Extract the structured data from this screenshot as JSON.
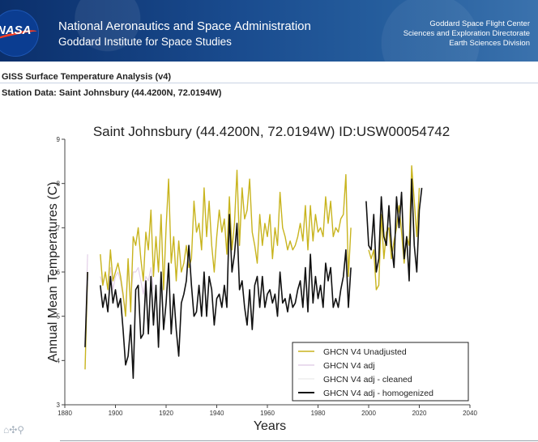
{
  "header": {
    "agency_name": "National Aeronautics and Space Administration",
    "institute": "Goddard Institute for Space Studies",
    "center_lines": [
      "Goddard Space Flight Center",
      "Sciences and Exploration Directorate",
      "Earth Sciences Division"
    ],
    "logo_text": "NASA"
  },
  "page": {
    "analysis_title": "GISS Surface Temperature Analysis (v4)",
    "station_label": "Station Data: Saint Johnsbury (44.4200N, 72.0194W)"
  },
  "toolbar": {
    "icons": "⌂✣⚲"
  },
  "chart_data": {
    "type": "line",
    "title": "Saint Johnsbury (44.4200N, 72.0194W) ID:USW00054742",
    "xlabel": "Years",
    "ylabel": "Annual Mean Temperatures (C)",
    "xlim": [
      1880,
      2040
    ],
    "ylim": [
      3,
      9
    ],
    "xticks": [
      1880,
      1900,
      1920,
      1940,
      1960,
      1980,
      2000,
      2020,
      2040
    ],
    "yticks": [
      3,
      4,
      5,
      6,
      7,
      8,
      9
    ],
    "legend_position": "bottom-right",
    "series": [
      {
        "name": "GHCN V4 Unadjusted",
        "color": "#c8b41e",
        "segments": [
          {
            "x": [
              1888,
              1889
            ],
            "y": [
              3.8,
              6.0
            ]
          },
          {
            "x": [
              1894,
              1895,
              1896,
              1897,
              1898,
              1899,
              1900,
              1901,
              1902,
              1903,
              1904,
              1905,
              1906,
              1907,
              1908,
              1909,
              1910,
              1911,
              1912,
              1913,
              1914,
              1915,
              1916,
              1917,
              1918,
              1919,
              1920,
              1921,
              1922,
              1923,
              1924,
              1925,
              1926,
              1927,
              1928,
              1929,
              1930,
              1931,
              1932,
              1933,
              1934,
              1935,
              1936,
              1937,
              1938,
              1939,
              1940,
              1941,
              1942,
              1943,
              1944,
              1945,
              1946,
              1947,
              1948,
              1949,
              1950,
              1951,
              1952,
              1953,
              1954,
              1955,
              1956,
              1957,
              1958,
              1959,
              1960,
              1961,
              1962,
              1963,
              1964,
              1965,
              1966,
              1967,
              1968,
              1969,
              1970,
              1971,
              1972,
              1973,
              1974,
              1975,
              1976,
              1977,
              1978,
              1979,
              1980,
              1981,
              1982,
              1983,
              1984,
              1985,
              1986,
              1987,
              1988,
              1989,
              1990,
              1991,
              1992,
              1993
            ],
            "y": [
              6.4,
              5.7,
              6.0,
              5.6,
              6.5,
              5.8,
              6.0,
              6.2,
              5.9,
              5.5,
              5.0,
              6.3,
              5.1,
              6.8,
              6.6,
              7.0,
              6.3,
              5.8,
              6.9,
              6.5,
              7.4,
              5.9,
              6.8,
              6.0,
              7.3,
              5.6,
              7.0,
              8.1,
              6.2,
              6.8,
              5.8,
              6.7,
              6.0,
              6.2,
              6.6,
              6.1,
              6.3,
              7.6,
              6.9,
              7.1,
              6.5,
              7.9,
              6.8,
              7.6,
              6.6,
              6.0,
              6.8,
              7.4,
              6.9,
              7.2,
              6.4,
              7.7,
              6.5,
              7.1,
              8.3,
              6.6,
              7.9,
              7.2,
              7.4,
              8.1,
              6.9,
              6.6,
              6.2,
              7.3,
              6.6,
              7.1,
              6.8,
              7.3,
              6.3,
              7.0,
              6.6,
              7.8,
              7.0,
              6.8,
              6.5,
              6.7,
              6.5,
              6.6,
              6.8,
              7.1,
              6.7,
              7.5,
              6.5,
              7.5,
              6.7,
              7.3,
              6.9,
              7.0,
              6.8,
              7.7,
              7.1,
              7.6,
              6.8,
              7.0,
              6.9,
              7.2,
              7.3,
              8.2,
              5.9,
              7.0
            ]
          },
          {
            "x": [
              2000,
              2001,
              2002,
              2003,
              2004,
              2005,
              2006,
              2007,
              2008,
              2009,
              2010,
              2011,
              2012,
              2013,
              2014,
              2015,
              2016,
              2017,
              2018,
              2019,
              2020
            ],
            "y": [
              6.5,
              6.3,
              6.5,
              5.6,
              5.7,
              7.3,
              6.3,
              6.9,
              7.0,
              6.3,
              6.7,
              7.0,
              7.5,
              6.9,
              6.2,
              6.8,
              6.6,
              8.4,
              7.6,
              6.8,
              7.9
            ]
          }
        ]
      },
      {
        "name": "GHCN V4 adj",
        "color": "#e3d0e8",
        "segments": [
          {
            "x": [
              1888,
              1889
            ],
            "y": [
              4.4,
              6.4
            ]
          },
          {
            "x": [
              1894,
              1895,
              1896,
              1897,
              1898,
              1899,
              1900,
              1901,
              1902,
              1903,
              1904,
              1905,
              1906,
              1907,
              1908,
              1909,
              1910,
              1911,
              1912,
              1913,
              1914,
              1915
            ],
            "y": [
              5.9,
              5.7,
              6.0,
              5.6,
              6.1,
              5.6,
              5.9,
              6.0,
              5.8,
              5.4,
              5.2,
              6.1,
              5.4,
              6.0,
              6.0,
              6.1,
              5.8,
              5.5,
              5.9,
              5.8,
              6.1,
              5.6
            ]
          }
        ]
      },
      {
        "name": "GHCN V4 adj - cleaned",
        "color": "#eeeeee",
        "segments": []
      },
      {
        "name": "GHCN V4 adj - homogenized",
        "color": "#111111",
        "segments": [
          {
            "x": [
              1888,
              1889
            ],
            "y": [
              4.3,
              6.0
            ]
          },
          {
            "x": [
              1894,
              1895,
              1896,
              1897,
              1898,
              1899,
              1900,
              1901,
              1902,
              1903,
              1904,
              1905,
              1906,
              1907,
              1908,
              1909,
              1910,
              1911,
              1912,
              1913,
              1914,
              1915,
              1916,
              1917,
              1918,
              1919,
              1920,
              1921,
              1922,
              1923,
              1924,
              1925,
              1926,
              1927,
              1928,
              1929,
              1930,
              1931,
              1932,
              1933,
              1934,
              1935,
              1936,
              1937,
              1938,
              1939,
              1940,
              1941,
              1942,
              1943,
              1944,
              1945,
              1946,
              1947,
              1948,
              1949,
              1950,
              1951,
              1952,
              1953,
              1954,
              1955,
              1956,
              1957,
              1958,
              1959,
              1960,
              1961,
              1962,
              1963,
              1964,
              1965,
              1966,
              1967,
              1968,
              1969,
              1970,
              1971,
              1972,
              1973,
              1974,
              1975,
              1976,
              1977,
              1978,
              1979,
              1980,
              1981,
              1982,
              1983,
              1984,
              1985,
              1986,
              1987,
              1988,
              1989,
              1990,
              1991,
              1992,
              1993
            ],
            "y": [
              5.7,
              5.2,
              5.5,
              5.1,
              5.9,
              5.3,
              5.6,
              5.2,
              5.4,
              4.7,
              3.9,
              4.1,
              4.8,
              3.6,
              5.6,
              5.7,
              4.5,
              4.6,
              5.8,
              4.6,
              5.9,
              4.8,
              5.7,
              4.3,
              6.0,
              4.7,
              5.3,
              6.2,
              4.6,
              5.5,
              4.7,
              4.1,
              5.3,
              5.5,
              5.8,
              6.6,
              5.7,
              5.0,
              5.1,
              5.7,
              5.0,
              6.0,
              5.0,
              5.9,
              5.6,
              4.8,
              5.4,
              5.5,
              5.2,
              5.7,
              5.2,
              7.3,
              6.0,
              6.4,
              7.1,
              5.6,
              5.8,
              5.2,
              4.8,
              5.6,
              4.7,
              5.7,
              5.9,
              5.2,
              5.9,
              5.2,
              5.5,
              5.6,
              5.3,
              5.5,
              5.0,
              6.0,
              5.3,
              5.4,
              5.1,
              5.5,
              5.2,
              5.3,
              5.6,
              5.8,
              5.2,
              6.1,
              5.1,
              6.4,
              5.3,
              5.9,
              5.4,
              5.7,
              5.2,
              6.2,
              5.8,
              6.1,
              5.2,
              5.4,
              5.2,
              5.6,
              5.9,
              6.5,
              5.2,
              6.1
            ]
          },
          {
            "x": [
              1999,
              2000,
              2001,
              2002,
              2003,
              2004,
              2005,
              2006,
              2007,
              2008,
              2009,
              2010,
              2011,
              2012,
              2013,
              2014,
              2015,
              2016,
              2017,
              2018,
              2019,
              2020,
              2021
            ],
            "y": [
              7.6,
              6.6,
              6.5,
              7.3,
              6.0,
              6.3,
              7.7,
              6.8,
              6.6,
              7.5,
              6.6,
              6.1,
              7.7,
              7.0,
              7.8,
              6.3,
              6.8,
              5.8,
              8.1,
              6.6,
              6.0,
              7.4,
              7.9
            ]
          }
        ]
      }
    ]
  }
}
